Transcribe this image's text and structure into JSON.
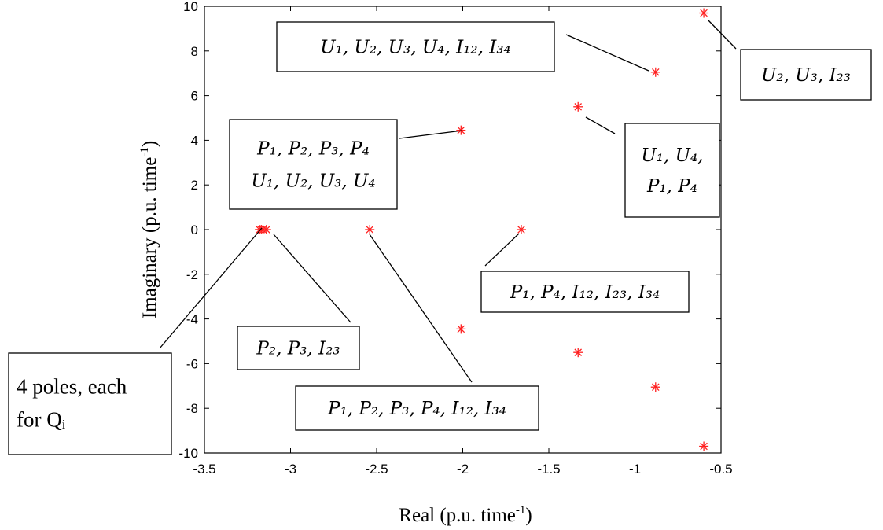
{
  "chart_data": {
    "type": "scatter",
    "title": "",
    "xlabel": "Real (p.u. time",
    "xlabel_sup": "-1",
    "xlabel_end": ")",
    "ylabel": "Imaginary (p.u. time",
    "ylabel_sup": "-1",
    "ylabel_end": ")",
    "xlim": [
      -3.5,
      -0.5
    ],
    "ylim": [
      -10,
      10
    ],
    "xticks": [
      -3.5,
      -3,
      -2.5,
      -2,
      -1.5,
      -1,
      -0.5
    ],
    "xtick_labels": [
      "-3.5",
      "-3",
      "-2.5",
      "-2",
      "-1.5",
      "-1",
      "-0.5"
    ],
    "yticks": [
      -10,
      -8,
      -6,
      -4,
      -2,
      0,
      2,
      4,
      6,
      8,
      10
    ],
    "ytick_labels": [
      "-10",
      "-8",
      "-6",
      "-4",
      "-2",
      "0",
      "2",
      "4",
      "6",
      "8",
      "10"
    ],
    "grid": false,
    "marker": "*",
    "marker_color": "#ff2020",
    "points": [
      {
        "x": -0.6,
        "y": 9.7
      },
      {
        "x": -0.6,
        "y": -9.7
      },
      {
        "x": -0.88,
        "y": 7.05
      },
      {
        "x": -0.88,
        "y": -7.05
      },
      {
        "x": -1.33,
        "y": 5.5
      },
      {
        "x": -1.33,
        "y": -5.5
      },
      {
        "x": -2.01,
        "y": 4.45
      },
      {
        "x": -2.01,
        "y": -4.45
      },
      {
        "x": -1.66,
        "y": 0
      },
      {
        "x": -2.54,
        "y": 0
      },
      {
        "x": -3.14,
        "y": 0
      },
      {
        "x": -3.16,
        "y": 0
      },
      {
        "x": -3.17,
        "y": 0
      },
      {
        "x": -3.18,
        "y": 0
      }
    ],
    "annotations": [
      {
        "lines": [
          "U₁, U₂, U₃, U₄, I₁₂, I₃₄"
        ]
      },
      {
        "lines": [
          "U₂, U₃, I₂₃"
        ]
      },
      {
        "lines": [
          "U₁, U₄,",
          "P₁, P₄"
        ]
      },
      {
        "lines": [
          "P₁, P₂, P₃, P₄",
          "U₁, U₂, U₃, U₄"
        ]
      },
      {
        "lines": [
          "P₁, P₄, I₁₂, I₂₃, I₃₄"
        ]
      },
      {
        "lines": [
          "P₂, P₃, I₂₃"
        ]
      },
      {
        "lines": [
          "P₁, P₂, P₃, P₄, I₁₂, I₃₄"
        ]
      },
      {
        "lines": [
          "4 poles, each",
          "for  Qᵢ"
        ]
      }
    ]
  }
}
